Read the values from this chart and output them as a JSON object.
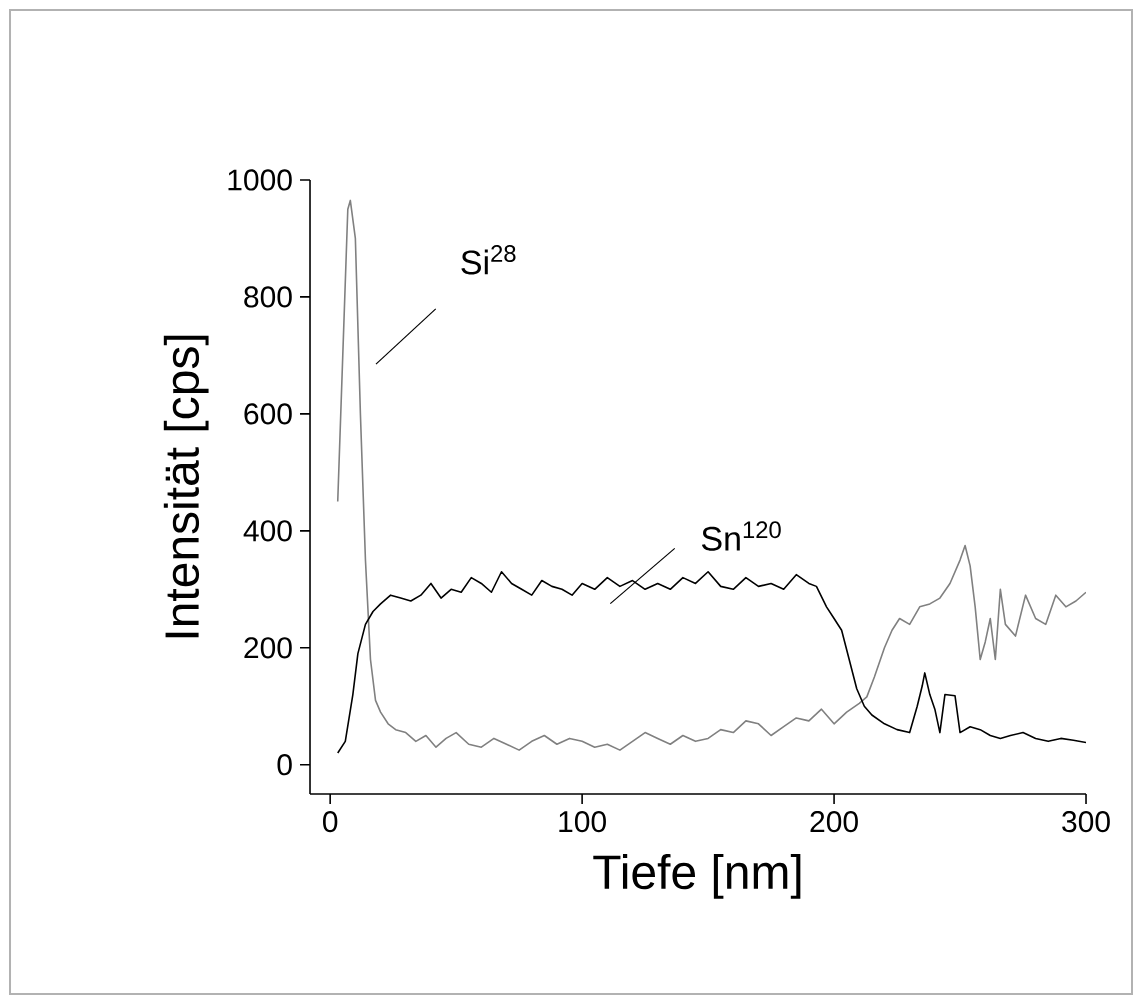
{
  "chart_data": {
    "type": "line",
    "xlabel": "Tiefe [nm]",
    "ylabel": "Intensität [cps]",
    "xlim": [
      -8,
      300
    ],
    "ylim": [
      -50,
      1000
    ],
    "xticks": [
      0,
      100,
      200,
      300
    ],
    "yticks": [
      0,
      200,
      400,
      600,
      800,
      1000
    ],
    "grid": false,
    "marker": "none",
    "line_style": "solid",
    "series": [
      {
        "color": "#808080",
        "x": [
          3,
          5,
          7,
          8,
          10,
          12,
          14,
          16,
          18,
          20,
          23,
          26,
          30,
          34,
          38,
          42,
          46,
          50,
          55,
          60,
          65,
          70,
          75,
          80,
          85,
          90,
          95,
          100,
          105,
          110,
          115,
          120,
          125,
          130,
          135,
          140,
          145,
          150,
          155,
          160,
          165,
          170,
          175,
          180,
          185,
          190,
          195,
          200,
          205,
          210,
          213,
          216,
          220,
          223,
          226,
          230,
          234,
          238,
          242,
          246,
          250,
          252,
          254,
          256,
          258,
          260,
          262,
          264,
          266,
          268,
          272,
          276,
          280,
          284,
          288,
          292,
          296,
          300
        ],
        "values": [
          450,
          700,
          950,
          965,
          900,
          600,
          350,
          180,
          110,
          90,
          70,
          60,
          55,
          40,
          50,
          30,
          45,
          55,
          35,
          30,
          45,
          35,
          25,
          40,
          50,
          35,
          45,
          40,
          30,
          35,
          25,
          40,
          55,
          45,
          35,
          50,
          40,
          45,
          60,
          55,
          75,
          70,
          50,
          65,
          80,
          75,
          95,
          70,
          90,
          105,
          116,
          150,
          200,
          230,
          250,
          240,
          270,
          275,
          285,
          310,
          350,
          375,
          340,
          270,
          180,
          210,
          250,
          180,
          300,
          240,
          220,
          290,
          250,
          240,
          290,
          270,
          280,
          295
        ]
      },
      {
        "color": "#000000",
        "x": [
          3,
          6,
          9,
          11,
          14,
          17,
          20,
          24,
          28,
          32,
          36,
          40,
          44,
          48,
          52,
          56,
          60,
          64,
          68,
          72,
          76,
          80,
          84,
          88,
          92,
          96,
          100,
          105,
          110,
          115,
          120,
          125,
          130,
          135,
          140,
          145,
          150,
          155,
          160,
          165,
          170,
          175,
          180,
          185,
          190,
          193,
          197,
          200,
          203,
          206,
          209,
          212,
          215,
          220,
          225,
          230,
          233,
          235,
          236,
          238,
          240,
          242,
          244,
          248,
          250,
          254,
          258,
          262,
          266,
          270,
          275,
          280,
          285,
          290,
          295,
          300
        ],
        "values": [
          20,
          40,
          120,
          190,
          240,
          262,
          275,
          290,
          285,
          280,
          290,
          310,
          285,
          300,
          295,
          320,
          310,
          295,
          330,
          310,
          300,
          290,
          315,
          305,
          300,
          290,
          310,
          300,
          320,
          305,
          315,
          300,
          310,
          300,
          320,
          310,
          330,
          305,
          300,
          320,
          305,
          310,
          300,
          325,
          310,
          305,
          270,
          250,
          230,
          180,
          130,
          100,
          85,
          70,
          60,
          55,
          100,
          135,
          157,
          120,
          95,
          55,
          120,
          118,
          55,
          65,
          60,
          50,
          45,
          50,
          55,
          45,
          40,
          45,
          42,
          38
        ]
      }
    ],
    "annotations": [
      "Si$^{28}$",
      "Sn$^{120}$"
    ]
  }
}
